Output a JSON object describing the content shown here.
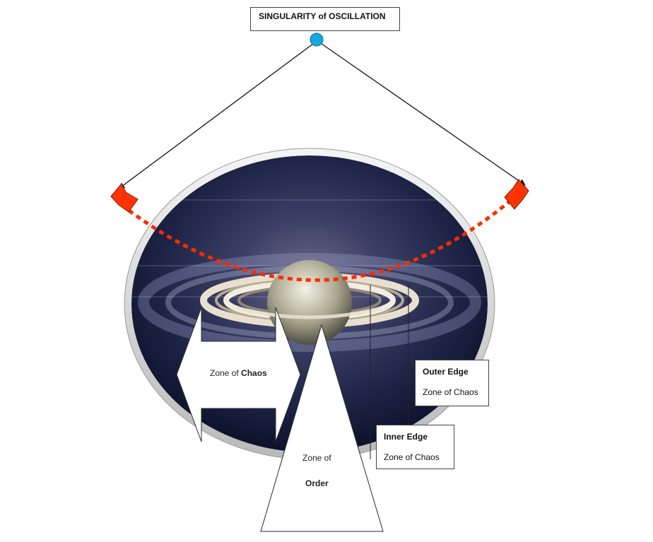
{
  "title": "SINGULARITY of OSCILLATION",
  "chaos_zone": {
    "prefix": "Zone of ",
    "emphasis": "Chaos"
  },
  "order_zone": {
    "line1": "Zone of",
    "line2": "Order"
  },
  "outer_edge": {
    "head": "Outer Edge",
    "sub": "Zone of Chaos"
  },
  "inner_edge": {
    "head": "Inner Edge",
    "sub": "Zone of Chaos"
  },
  "colors": {
    "singularity_node": "#17a8e0",
    "oscillation_path": "#ff2a00",
    "arrowhead": "#ff3300",
    "space_dark": "#141a33",
    "frame": "#d8d8d8"
  }
}
